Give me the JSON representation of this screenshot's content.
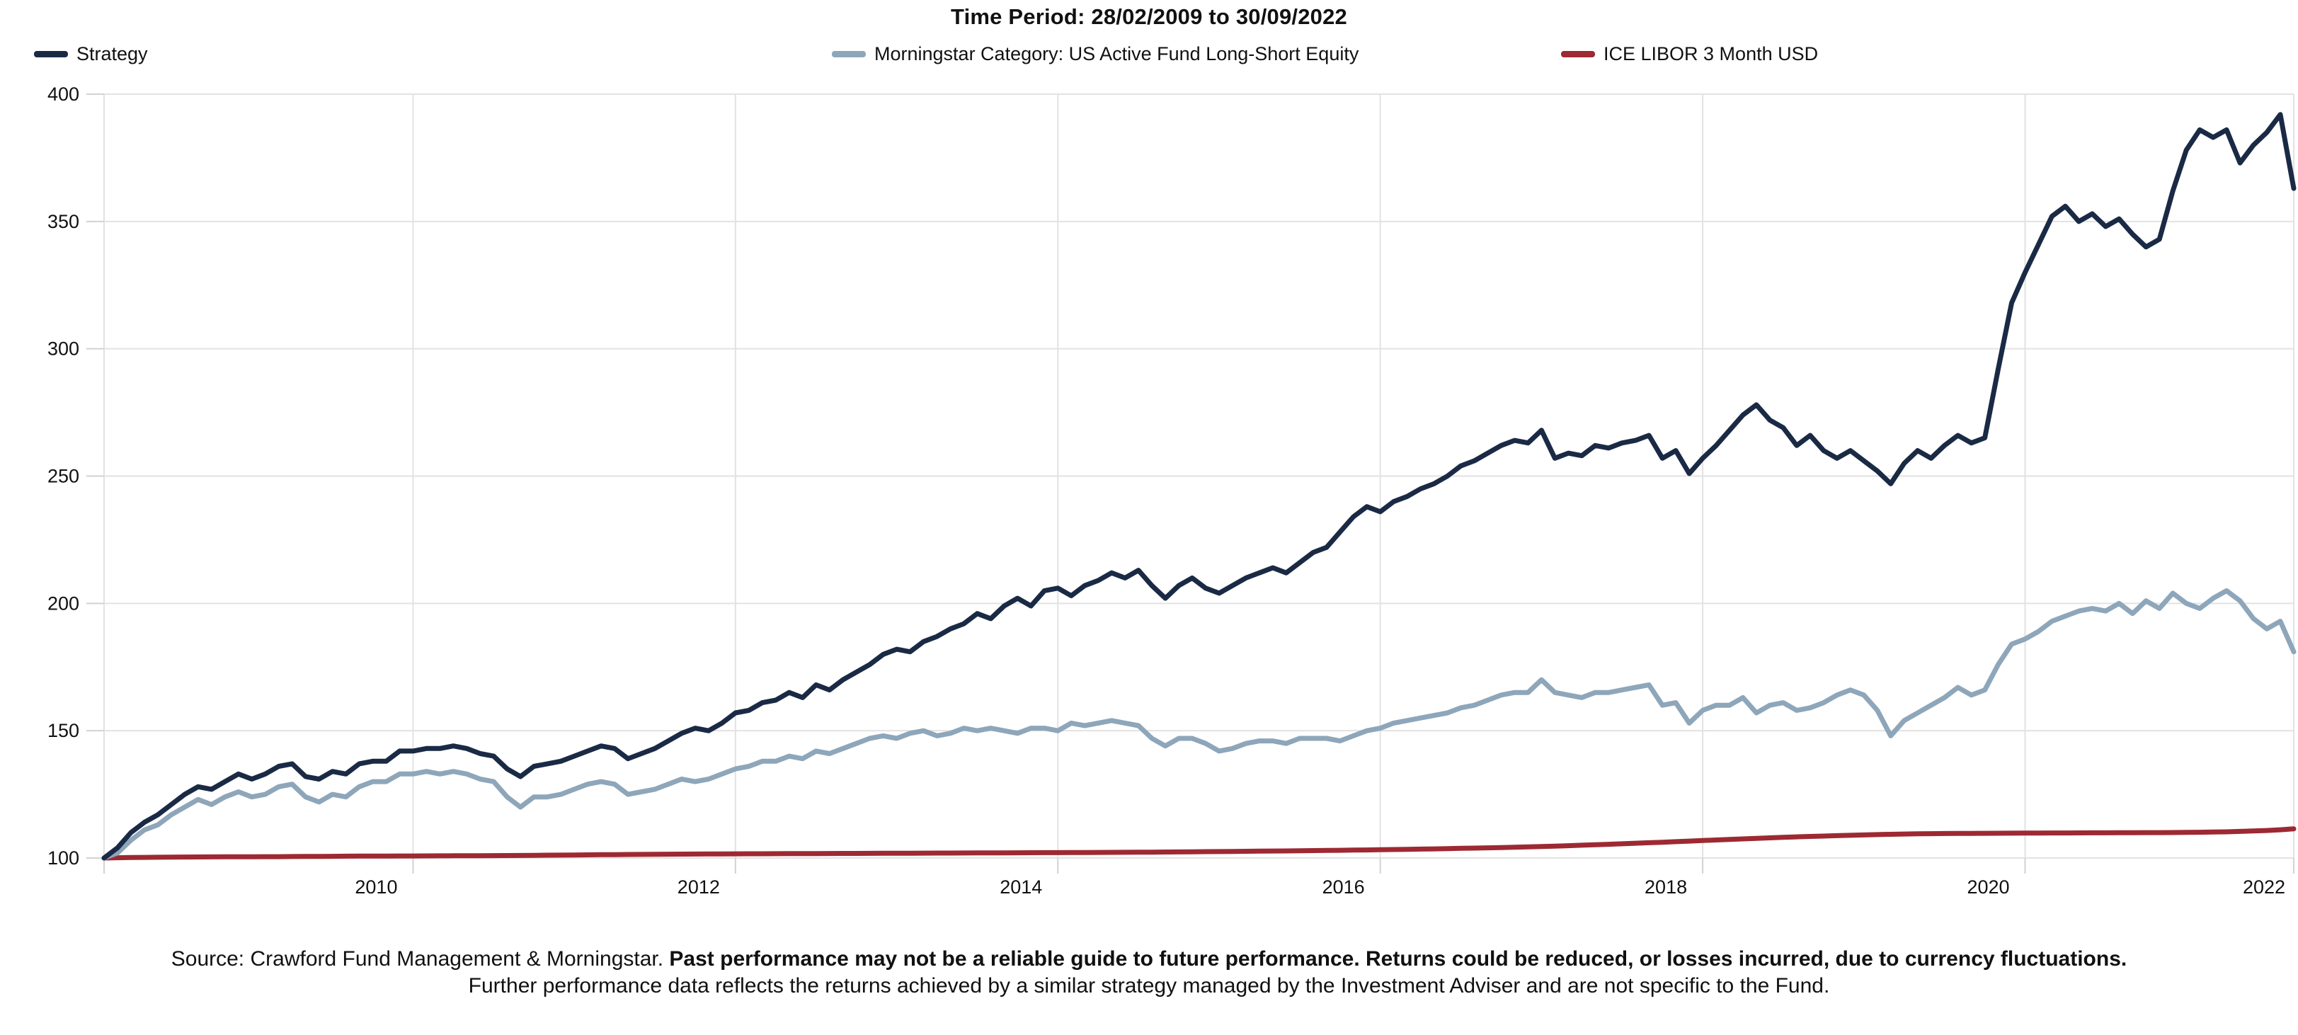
{
  "title": "Time Period: 28/02/2009 to 30/09/2022",
  "legend": [
    {
      "label": "Strategy",
      "color": "#1a2a45"
    },
    {
      "label": "Morningstar Category: US Active Fund Long-Short Equity",
      "color": "#8ea6ba"
    },
    {
      "label": "ICE LIBOR 3 Month USD",
      "color": "#9d2933"
    }
  ],
  "footer": {
    "source_normal": "Source: Crawford Fund Management & Morningstar. ",
    "source_bold": "Past performance may not be a reliable guide to future performance. Returns could be reduced, or losses incurred, due to currency fluctuations.",
    "line2": "Further performance data reflects the returns achieved by a similar strategy managed by the Investment Adviser and are not specific to the Fund."
  },
  "colors": {
    "grid": "#e2e2e2",
    "tick": "#d2d2d2",
    "text": "#111111",
    "background": "#ffffff"
  },
  "chart_data": {
    "type": "line",
    "title": "Time Period: 28/02/2009 to 30/09/2022",
    "x_start": "2009-02",
    "x_end": "2022-09",
    "frequency": "monthly",
    "n_points": 164,
    "x_tick_labels": [
      "2010",
      "2012",
      "2014",
      "2016",
      "2018",
      "2020",
      "2022"
    ],
    "x_gridline_month_indices": [
      23,
      47,
      71,
      95,
      119,
      143
    ],
    "y_tick_labels": [
      "100",
      "150",
      "200",
      "250",
      "300",
      "350",
      "400"
    ],
    "y_tick_values": [
      100,
      150,
      200,
      250,
      300,
      350,
      400
    ],
    "ylim": [
      100,
      400
    ],
    "grid": true,
    "legend_position": "top",
    "series": [
      {
        "name": "ICE LIBOR 3 Month USD",
        "color": "#9d2933",
        "values": [
          100,
          100.1,
          100.2,
          100.25,
          100.3,
          100.34,
          100.38,
          100.41,
          100.44,
          100.46,
          100.48,
          100.5,
          100.52,
          100.54,
          100.57,
          100.6,
          100.64,
          100.68,
          100.71,
          100.74,
          100.76,
          100.78,
          100.8,
          100.82,
          100.84,
          100.87,
          100.89,
          100.91,
          100.93,
          100.95,
          100.98,
          101.01,
          101.05,
          101.1,
          101.15,
          101.2,
          101.25,
          101.3,
          101.34,
          101.38,
          101.42,
          101.46,
          101.5,
          101.53,
          101.56,
          101.59,
          101.62,
          101.64,
          101.66,
          101.68,
          101.7,
          101.72,
          101.74,
          101.76,
          101.78,
          101.8,
          101.82,
          101.84,
          101.86,
          101.88,
          101.9,
          101.92,
          101.94,
          101.96,
          101.98,
          102,
          102.02,
          102.04,
          102.06,
          102.08,
          102.1,
          102.12,
          102.14,
          102.17,
          102.2,
          102.23,
          102.26,
          102.29,
          102.32,
          102.36,
          102.4,
          102.44,
          102.49,
          102.54,
          102.59,
          102.64,
          102.69,
          102.74,
          102.79,
          102.85,
          102.91,
          102.97,
          103.04,
          103.11,
          103.18,
          103.26,
          103.34,
          103.42,
          103.51,
          103.6,
          103.7,
          103.8,
          103.9,
          104.01,
          104.12,
          104.24,
          104.37,
          104.52,
          104.68,
          104.85,
          105.03,
          105.21,
          105.4,
          105.6,
          105.8,
          106,
          106.21,
          106.42,
          106.64,
          106.86,
          107.08,
          107.3,
          107.52,
          107.73,
          107.93,
          108.12,
          108.3,
          108.47,
          108.63,
          108.78,
          108.92,
          109.06,
          109.2,
          109.32,
          109.42,
          109.5,
          109.56,
          109.61,
          109.65,
          109.68,
          109.71,
          109.74,
          109.77,
          109.79,
          109.81,
          109.83,
          109.85,
          109.87,
          109.89,
          109.91,
          109.93,
          109.95,
          109.97,
          109.99,
          110.02,
          110.06,
          110.12,
          110.2,
          110.3,
          110.45,
          110.62,
          110.82,
          111.1,
          111.45
        ]
      },
      {
        "name": "Morningstar Category: US Active Fund Long-Short Equity",
        "color": "#8ea6ba",
        "values": [
          100,
          102,
          107,
          111,
          113,
          117,
          120,
          123,
          121,
          124,
          126,
          124,
          125,
          128,
          129,
          124,
          122,
          125,
          124,
          128,
          130,
          130,
          133,
          133,
          134,
          133,
          134,
          133,
          131,
          130,
          124,
          120,
          124,
          124,
          125,
          127,
          129,
          130,
          129,
          125,
          126,
          127,
          129,
          131,
          130,
          131,
          133,
          135,
          136,
          138,
          138,
          140,
          139,
          142,
          141,
          143,
          145,
          147,
          148,
          147,
          149,
          150,
          148,
          149,
          151,
          150,
          151,
          150,
          149,
          151,
          151,
          150,
          153,
          152,
          153,
          154,
          153,
          152,
          147,
          144,
          147,
          147,
          145,
          142,
          143,
          145,
          146,
          146,
          145,
          147,
          147,
          147,
          146,
          148,
          150,
          151,
          153,
          154,
          155,
          156,
          157,
          159,
          160,
          162,
          164,
          165,
          165,
          170,
          165,
          164,
          163,
          165,
          165,
          166,
          167,
          168,
          160,
          161,
          153,
          158,
          160,
          160,
          163,
          157,
          160,
          161,
          158,
          159,
          161,
          164,
          166,
          164,
          158,
          148,
          154,
          157,
          160,
          163,
          167,
          164,
          166,
          176,
          184,
          186,
          189,
          193,
          195,
          197,
          198,
          197,
          200,
          196,
          201,
          198,
          204,
          200,
          198,
          202,
          205,
          201,
          194,
          190,
          193,
          181
        ]
      },
      {
        "name": "Strategy",
        "color": "#1a2a45",
        "values": [
          100,
          104,
          110,
          114,
          117,
          121,
          125,
          128,
          127,
          130,
          133,
          131,
          133,
          136,
          137,
          132,
          131,
          134,
          133,
          137,
          138,
          138,
          142,
          142,
          143,
          143,
          144,
          143,
          141,
          140,
          135,
          132,
          136,
          137,
          138,
          140,
          142,
          144,
          143,
          139,
          141,
          143,
          146,
          149,
          151,
          150,
          153,
          157,
          158,
          161,
          162,
          165,
          163,
          168,
          166,
          170,
          173,
          176,
          180,
          182,
          181,
          185,
          187,
          190,
          192,
          196,
          194,
          199,
          202,
          199,
          205,
          206,
          203,
          207,
          209,
          212,
          210,
          213,
          207,
          202,
          207,
          210,
          206,
          204,
          207,
          210,
          212,
          214,
          212,
          216,
          220,
          222,
          228,
          234,
          238,
          236,
          240,
          242,
          245,
          247,
          250,
          254,
          256,
          259,
          262,
          264,
          263,
          268,
          257,
          259,
          258,
          262,
          261,
          263,
          264,
          266,
          257,
          260,
          251,
          257,
          262,
          268,
          274,
          278,
          272,
          269,
          262,
          266,
          260,
          257,
          260,
          256,
          252,
          247,
          255,
          260,
          257,
          262,
          266,
          263,
          265,
          292,
          318,
          330,
          341,
          352,
          356,
          350,
          353,
          348,
          351,
          345,
          340,
          343,
          362,
          378,
          386,
          383,
          386,
          373,
          380,
          385,
          392,
          363
        ]
      }
    ]
  }
}
